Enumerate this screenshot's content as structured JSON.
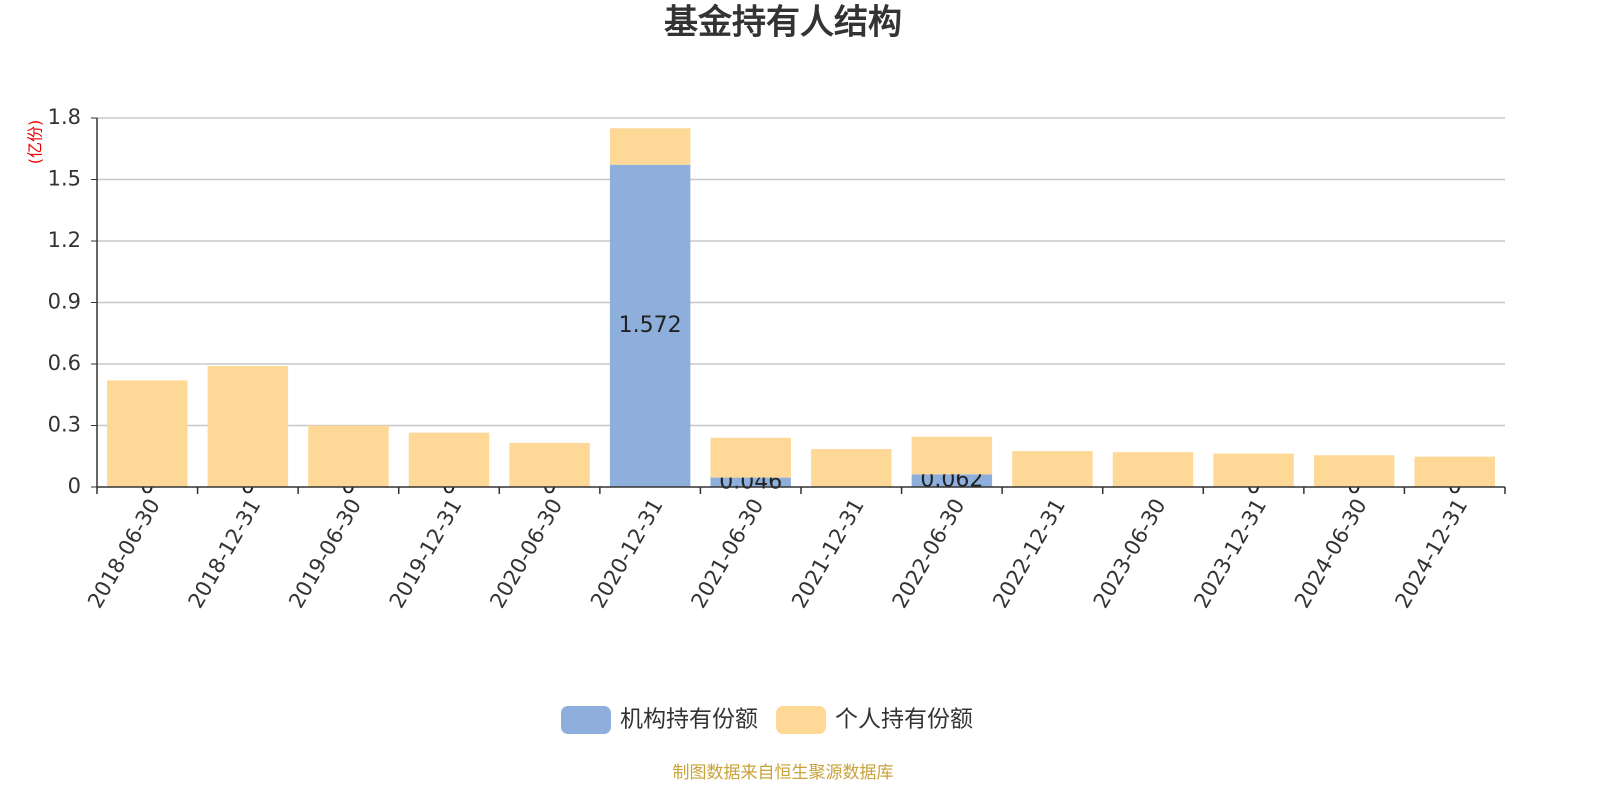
{
  "chart_data": {
    "type": "bar",
    "stacked": true,
    "title": "基金持有人结构",
    "y_axis_label": "(亿份)",
    "source": "制图数据来自恒生聚源数据库",
    "categories": [
      "2018-06-30",
      "2018-12-31",
      "2019-06-30",
      "2019-12-31",
      "2020-06-30",
      "2020-12-31",
      "2021-06-30",
      "2021-12-31",
      "2022-06-30",
      "2022-12-31",
      "2023-06-30",
      "2023-12-31",
      "2024-06-30",
      "2024-12-31"
    ],
    "series": [
      {
        "name": "机构持有份额",
        "color": "#8eaedb",
        "show_labels": true,
        "values": [
          0,
          0,
          0,
          0,
          0,
          1.572,
          0.046,
          null,
          0.062,
          null,
          null,
          0,
          0,
          0
        ]
      },
      {
        "name": "个人持有份额",
        "color": "#fed896",
        "show_labels": false,
        "values": [
          0.52,
          0.59,
          0.3,
          0.265,
          0.215,
          0.178,
          0.194,
          0.185,
          0.183,
          0.175,
          0.17,
          0.163,
          0.155,
          0.148
        ]
      }
    ],
    "ylim": [
      0,
      1.8
    ],
    "yticks": [
      0,
      {
        "value": 0.3,
        "label": "0.3"
      },
      {
        "value": 0.6,
        "label": "0.6"
      },
      {
        "value": 0.9,
        "label": "0.9"
      },
      {
        "value": 1.2,
        "label": "1.2"
      },
      {
        "value": 1.5,
        "label": "1.5"
      },
      {
        "value": 1.8,
        "label": "1.8"
      }
    ],
    "grid": true,
    "legend": "bottom"
  }
}
